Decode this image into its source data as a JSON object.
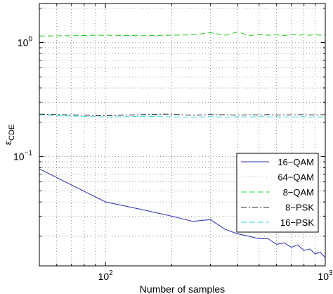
{
  "chart_data": {
    "type": "line",
    "xlabel": "Number of samples",
    "ylabel": "ε",
    "ylabel_sub": "CDE",
    "x_scale": "log",
    "y_scale": "log",
    "xlim": [
      50,
      1000
    ],
    "ylim": [
      0.011,
      2.2
    ],
    "grid": true,
    "legend_position": "lower-right",
    "x_ticks": [
      {
        "value": 100,
        "base": "10",
        "exp": "2"
      },
      {
        "value": 1000,
        "base": "10",
        "exp": "3"
      }
    ],
    "y_ticks": [
      {
        "value": 0.1,
        "base": "10",
        "exp": "−1"
      },
      {
        "value": 1,
        "base": "10",
        "exp": "0"
      }
    ],
    "series": [
      {
        "name": "16−QAM",
        "color": "#2b2bb8",
        "dash": "solid",
        "x": [
          50,
          100,
          150,
          200,
          250,
          300,
          350,
          400,
          450,
          500,
          550,
          600,
          650,
          700,
          750,
          800,
          850,
          900,
          950,
          1000
        ],
        "y": [
          0.078,
          0.04,
          0.034,
          0.03,
          0.027,
          0.028,
          0.023,
          0.021,
          0.02,
          0.019,
          0.019,
          0.017,
          0.0175,
          0.016,
          0.0168,
          0.015,
          0.0155,
          0.014,
          0.0145,
          0.013
        ]
      },
      {
        "name": "64−QAM",
        "color": "#d98ad9",
        "dash": "dotted",
        "x": [],
        "y": []
      },
      {
        "name": "8−QAM",
        "color": "#22cc22",
        "dash": "dashed",
        "x": [
          50,
          100,
          150,
          200,
          250,
          300,
          350,
          400,
          450,
          500,
          550,
          600,
          650,
          700,
          750,
          800,
          850,
          900,
          950,
          1000
        ],
        "y": [
          1.14,
          1.16,
          1.15,
          1.16,
          1.17,
          1.22,
          1.16,
          1.24,
          1.15,
          1.18,
          1.16,
          1.17,
          1.15,
          1.18,
          1.16,
          1.17,
          1.16,
          1.18,
          1.16,
          1.17
        ]
      },
      {
        "name": "8−PSK",
        "color": "#222222",
        "dash": "dashdot",
        "x": [
          50,
          100,
          150,
          200,
          250,
          300,
          350,
          400,
          450,
          500,
          550,
          600,
          650,
          700,
          750,
          800,
          850,
          900,
          950,
          1000
        ],
        "y": [
          0.236,
          0.228,
          0.234,
          0.236,
          0.23,
          0.234,
          0.233,
          0.231,
          0.233,
          0.232,
          0.234,
          0.231,
          0.233,
          0.232,
          0.233,
          0.234,
          0.232,
          0.233,
          0.232,
          0.234
        ]
      },
      {
        "name": "16−PSK",
        "color": "#2ad7e6",
        "dash": "dashed",
        "x": [
          50,
          100,
          150,
          200,
          250,
          300,
          350,
          400,
          450,
          500,
          550,
          600,
          650,
          700,
          750,
          800,
          850,
          900,
          950,
          1000
        ],
        "y": [
          0.232,
          0.222,
          0.226,
          0.223,
          0.221,
          0.224,
          0.222,
          0.223,
          0.222,
          0.224,
          0.223,
          0.222,
          0.223,
          0.222,
          0.223,
          0.224,
          0.222,
          0.223,
          0.222,
          0.223
        ]
      }
    ]
  }
}
